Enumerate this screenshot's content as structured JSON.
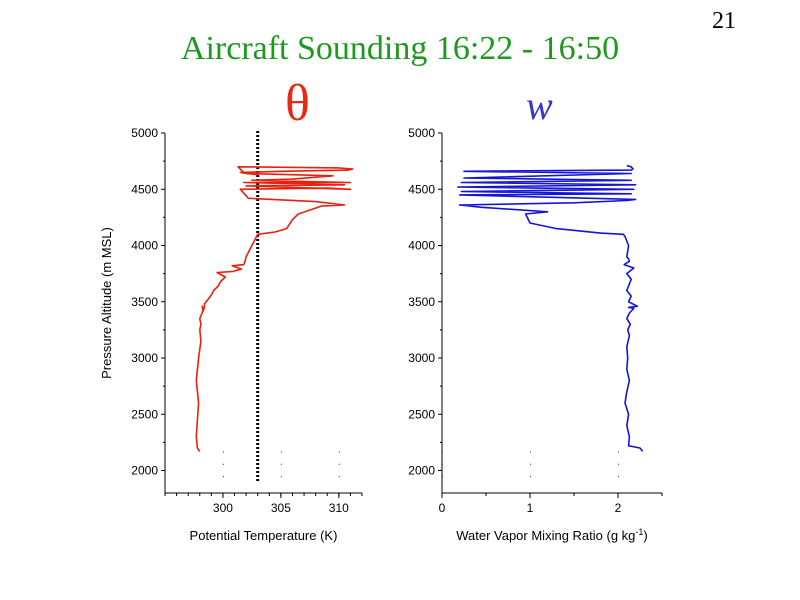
{
  "slide": {
    "page_number": "21",
    "title": "Aircraft Sounding 16:22 - 16:50",
    "theta_symbol": "θ",
    "w_symbol": "w"
  },
  "colors": {
    "title": "#1d9a1d",
    "theta_line": "#e8200f",
    "w_line": "#1515d6"
  },
  "chart_data": [
    {
      "type": "line",
      "name": "potential-temperature",
      "title": "θ",
      "xlabel": "Potential Temperature (K)",
      "ylabel": "Pressure Altitude (m MSL)",
      "xlim": [
        295,
        312
      ],
      "ylim": [
        1800,
        5000
      ],
      "xticks": [
        300,
        305,
        310
      ],
      "xtick_labels": [
        "300",
        "305",
        "310"
      ],
      "yticks": [
        2000,
        2500,
        3000,
        3500,
        4000,
        4500,
        5000
      ],
      "ytick_labels": [
        "2000",
        "2500",
        "3000",
        "3500",
        "4000",
        "4500",
        "5000"
      ],
      "reference_line": {
        "x": 303,
        "style": "dotted",
        "color": "#000000"
      },
      "series": [
        {
          "name": "theta",
          "color": "#e8200f",
          "x": [
            298.0,
            297.8,
            297.7,
            297.8,
            297.9,
            297.7,
            297.9,
            298.1,
            298.0,
            298.1,
            298.0,
            298.2,
            298.3,
            298.2,
            298.3,
            298.4,
            298.4,
            298.7,
            299.0,
            299.2,
            299.6,
            299.8,
            300.2,
            299.5,
            300.9,
            301.2,
            301.6,
            300.8,
            301.8,
            301.9,
            302.0,
            303.0,
            304.5,
            305.5,
            306.0,
            306.5,
            308.5,
            310.5,
            308.0,
            302.2,
            301.5,
            309.0,
            311.0,
            302.0,
            310.5,
            301.8,
            311.0,
            302.5,
            306.0,
            309.5,
            302.0,
            303.0,
            301.8,
            301.3,
            310.0,
            311.2,
            310.8,
            305.0,
            301.5,
            302.0
          ],
          "y": [
            2170,
            2200,
            2300,
            2450,
            2600,
            2800,
            3000,
            3150,
            3250,
            3300,
            3350,
            3400,
            3430,
            3460,
            3420,
            3450,
            3480,
            3520,
            3560,
            3600,
            3640,
            3680,
            3720,
            3760,
            3770,
            3780,
            3790,
            3820,
            3830,
            3860,
            3900,
            4100,
            4120,
            4150,
            4230,
            4280,
            4350,
            4360,
            4390,
            4420,
            4500,
            4510,
            4500,
            4530,
            4540,
            4560,
            4560,
            4580,
            4590,
            4620,
            4640,
            4630,
            4650,
            4700,
            4690,
            4680,
            4670,
            4660,
            4650,
            4640
          ]
        }
      ]
    },
    {
      "type": "line",
      "name": "water-vapor-mixing-ratio",
      "title": "w",
      "xlabel": "Water Vapor Mixing Ratio (g kg",
      "xlabel_superscript": "-1",
      "xlabel_suffix": ")",
      "ylim": [
        1800,
        5000
      ],
      "xlim": [
        0,
        2.5
      ],
      "xticks": [
        0,
        1,
        2
      ],
      "xtick_labels": [
        "0",
        "1",
        "2"
      ],
      "yticks": [
        2000,
        2500,
        3000,
        3500,
        4000,
        4500,
        5000
      ],
      "ytick_labels": [
        "2000",
        "2500",
        "3000",
        "3500",
        "4000",
        "4500",
        "5000"
      ],
      "series": [
        {
          "name": "w",
          "color": "#1515d6",
          "x": [
            2.28,
            2.25,
            2.12,
            2.13,
            2.1,
            2.12,
            2.08,
            2.1,
            2.13,
            2.1,
            2.11,
            2.1,
            2.13,
            2.11,
            2.14,
            2.1,
            2.13,
            2.18,
            2.12,
            2.22,
            2.12,
            2.15,
            2.1,
            2.15,
            2.1,
            2.18,
            2.07,
            2.13,
            2.12,
            2.1,
            2.12,
            2.08,
            2.06,
            1.8,
            1.3,
            1.0,
            0.95,
            1.2,
            0.45,
            0.2,
            1.5,
            2.1,
            2.2,
            0.2,
            2.15,
            0.22,
            2.18,
            0.18,
            2.2,
            0.22,
            2.15,
            0.25,
            2.15,
            0.25,
            2.15,
            2.17,
            2.15,
            2.1
          ],
          "y": [
            2170,
            2200,
            2220,
            2300,
            2400,
            2500,
            2600,
            2700,
            2800,
            2900,
            3000,
            3100,
            3200,
            3250,
            3300,
            3350,
            3400,
            3440,
            3450,
            3460,
            3500,
            3550,
            3600,
            3700,
            3750,
            3800,
            3830,
            3860,
            3880,
            3900,
            4000,
            4080,
            4100,
            4110,
            4150,
            4200,
            4280,
            4300,
            4340,
            4360,
            4380,
            4400,
            4410,
            4450,
            4460,
            4480,
            4500,
            4520,
            4540,
            4560,
            4580,
            4600,
            4640,
            4660,
            4670,
            4680,
            4700,
            4710
          ]
        }
      ]
    }
  ]
}
